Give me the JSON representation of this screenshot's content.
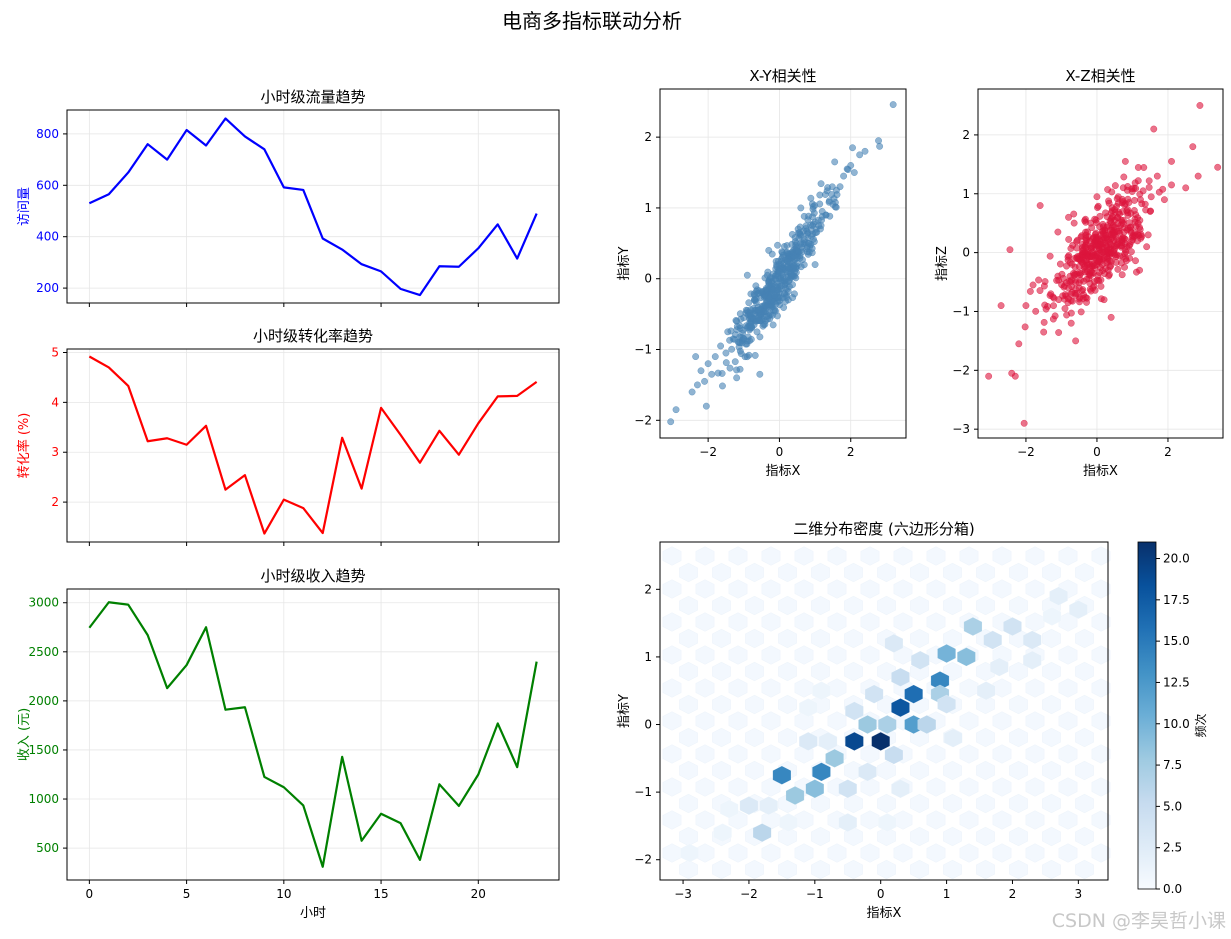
{
  "figure_title": "电商多指标联动分析",
  "watermark": "CSDN @李昊哲小课",
  "colors": {
    "traffic": "#0000ff",
    "conversion": "#ff0000",
    "revenue": "#008000",
    "xy": "#4682b4",
    "xz": "#dc143c"
  },
  "chart_data": [
    {
      "id": "traffic",
      "type": "line",
      "title": "小时级流量趋势",
      "xlabel": "",
      "ylabel": "访问量",
      "x": [
        0,
        1,
        2,
        3,
        4,
        5,
        6,
        7,
        8,
        9,
        10,
        11,
        12,
        13,
        14,
        15,
        16,
        17,
        18,
        19,
        20,
        21,
        22,
        23
      ],
      "series": [
        {
          "values": [
            530,
            565,
            650,
            760,
            700,
            815,
            755,
            860,
            790,
            740,
            592,
            582,
            393,
            350,
            293,
            265,
            197,
            173,
            285,
            283,
            355,
            448,
            315,
            490
          ]
        }
      ],
      "xlim": [
        -1.15,
        24.15
      ],
      "ylim": [
        142,
        893
      ],
      "xticks": [
        0,
        5,
        10,
        15,
        20
      ],
      "yticks": [
        200,
        400,
        600,
        800
      ],
      "grid": true
    },
    {
      "id": "conversion",
      "type": "line",
      "title": "小时级转化率趋势",
      "xlabel": "",
      "ylabel": "转化率 (%)",
      "x": [
        0,
        1,
        2,
        3,
        4,
        5,
        6,
        7,
        8,
        9,
        10,
        11,
        12,
        13,
        14,
        15,
        16,
        17,
        18,
        19,
        20,
        21,
        22,
        23
      ],
      "series": [
        {
          "values": [
            4.92,
            4.7,
            4.33,
            3.22,
            3.28,
            3.15,
            3.53,
            2.25,
            2.54,
            1.37,
            2.05,
            1.88,
            1.38,
            3.29,
            2.27,
            3.89,
            3.35,
            2.79,
            3.43,
            2.95,
            3.58,
            4.12,
            4.13,
            4.41
          ]
        }
      ],
      "xlim": [
        -1.15,
        24.15
      ],
      "ylim": [
        1.2,
        5.07
      ],
      "xticks": [
        0,
        5,
        10,
        15,
        20
      ],
      "yticks": [
        2,
        3,
        4,
        5
      ],
      "grid": true
    },
    {
      "id": "revenue",
      "type": "line",
      "title": "小时级收入趋势",
      "xlabel": "小时",
      "ylabel": "收入 (元)",
      "x": [
        0,
        1,
        2,
        3,
        4,
        5,
        6,
        7,
        8,
        9,
        10,
        11,
        12,
        13,
        14,
        15,
        16,
        17,
        18,
        19,
        20,
        21,
        22,
        23
      ],
      "series": [
        {
          "values": [
            2745,
            3005,
            2980,
            2670,
            2130,
            2365,
            2750,
            1910,
            1935,
            1225,
            1120,
            935,
            310,
            1430,
            575,
            850,
            755,
            380,
            1150,
            930,
            1250,
            1770,
            1325,
            2400
          ]
        }
      ],
      "xlim": [
        -1.15,
        24.15
      ],
      "ylim": [
        175,
        3140
      ],
      "xticks": [
        0,
        5,
        10,
        15,
        20
      ],
      "yticks": [
        500,
        1000,
        1500,
        2000,
        2500,
        3000
      ],
      "grid": true
    },
    {
      "id": "xy",
      "type": "scatter",
      "title": "X-Y相关性",
      "xlabel": "指标X",
      "ylabel": "指标Y",
      "xlim": [
        -3.35,
        3.55
      ],
      "ylim": [
        -2.25,
        2.68
      ],
      "xticks": [
        -2,
        0,
        2
      ],
      "yticks": [
        -2,
        -1,
        0,
        1,
        2
      ],
      "grid": true,
      "points": [
        [
          -3.05,
          -2.02
        ],
        [
          3.19,
          2.46
        ],
        [
          2.78,
          1.95
        ],
        [
          2.81,
          1.87
        ],
        [
          -2.9,
          -1.85
        ],
        [
          -2.45,
          -1.6
        ],
        [
          -2.3,
          -1.5
        ],
        [
          -2.2,
          -1.3
        ],
        [
          -2.1,
          -1.45
        ],
        [
          -2.0,
          -1.2
        ],
        [
          -1.9,
          -1.35
        ],
        [
          -2.05,
          -1.8
        ],
        [
          -1.8,
          -1.1
        ],
        [
          -1.65,
          -0.95
        ],
        [
          -1.5,
          -1.05
        ],
        [
          -1.45,
          -0.75
        ],
        [
          -1.3,
          -0.85
        ],
        [
          -1.2,
          -0.6
        ],
        [
          -1.1,
          -0.7
        ],
        [
          -1.0,
          -0.55
        ],
        [
          -0.9,
          -0.45
        ],
        [
          -0.8,
          -0.6
        ],
        [
          -0.7,
          -0.3
        ],
        [
          -0.6,
          -0.4
        ],
        [
          -0.5,
          -0.2
        ],
        [
          -0.4,
          -0.25
        ],
        [
          -0.3,
          -0.05
        ],
        [
          -0.2,
          -0.15
        ],
        [
          -0.1,
          0.05
        ],
        [
          0.0,
          0.0
        ],
        [
          0.1,
          0.15
        ],
        [
          0.2,
          0.1
        ],
        [
          0.3,
          0.3
        ],
        [
          0.4,
          0.25
        ],
        [
          0.5,
          0.45
        ],
        [
          0.6,
          0.4
        ],
        [
          0.7,
          0.55
        ],
        [
          0.8,
          0.65
        ],
        [
          0.9,
          0.6
        ],
        [
          1.0,
          0.8
        ],
        [
          1.1,
          0.75
        ],
        [
          1.2,
          0.95
        ],
        [
          1.3,
          0.9
        ],
        [
          1.4,
          1.1
        ],
        [
          1.5,
          1.05
        ],
        [
          1.6,
          1.25
        ],
        [
          1.7,
          1.3
        ],
        [
          1.8,
          1.45
        ],
        [
          1.9,
          1.55
        ],
        [
          2.0,
          1.6
        ],
        [
          2.1,
          1.5
        ],
        [
          2.25,
          1.75
        ],
        [
          2.4,
          1.8
        ],
        [
          1.55,
          1.65
        ],
        [
          2.05,
          1.85
        ],
        [
          -0.55,
          -1.35
        ],
        [
          -2.35,
          -1.1
        ],
        [
          -0.9,
          0.05
        ],
        [
          -1.2,
          -1.4
        ],
        [
          0.6,
          1.0
        ],
        [
          1.0,
          0.2
        ],
        [
          0.25,
          -0.3
        ],
        [
          -0.3,
          0.4
        ]
      ]
    },
    {
      "id": "xz",
      "type": "scatter",
      "title": "X-Z相关性",
      "xlabel": "指标X",
      "ylabel": "指标Z",
      "xlim": [
        -3.35,
        3.55
      ],
      "ylim": [
        -3.15,
        2.78
      ],
      "xticks": [
        -2,
        0,
        2
      ],
      "yticks": [
        -3,
        -2,
        -1,
        0,
        1,
        2
      ],
      "grid": true,
      "points": [
        [
          -3.05,
          -2.1
        ],
        [
          -2.4,
          -2.05
        ],
        [
          -2.3,
          -2.1
        ],
        [
          -2.05,
          -2.9
        ],
        [
          2.9,
          2.5
        ],
        [
          3.4,
          1.45
        ],
        [
          2.85,
          1.3
        ],
        [
          2.7,
          1.8
        ],
        [
          -2.45,
          0.05
        ],
        [
          -2.7,
          -0.9
        ],
        [
          1.6,
          2.1
        ],
        [
          2.1,
          1.55
        ],
        [
          2.5,
          1.1
        ],
        [
          -2.2,
          -1.55
        ],
        [
          -1.8,
          -0.55
        ],
        [
          -1.5,
          -1.35
        ],
        [
          -1.3,
          -0.7
        ],
        [
          -1.1,
          -0.4
        ],
        [
          -0.9,
          -0.95
        ],
        [
          -0.7,
          -0.2
        ],
        [
          -0.5,
          -0.6
        ],
        [
          -0.3,
          0.15
        ],
        [
          -0.1,
          -0.35
        ],
        [
          0.1,
          0.3
        ],
        [
          0.3,
          -0.1
        ],
        [
          0.5,
          0.55
        ],
        [
          0.7,
          0.2
        ],
        [
          0.9,
          0.85
        ],
        [
          1.1,
          0.45
        ],
        [
          1.3,
          1.05
        ],
        [
          1.5,
          0.7
        ],
        [
          1.7,
          1.3
        ],
        [
          1.9,
          0.9
        ],
        [
          2.1,
          1.15
        ],
        [
          -1.6,
          0.8
        ],
        [
          -1.1,
          0.35
        ],
        [
          0.4,
          -1.1
        ],
        [
          1.2,
          -0.3
        ],
        [
          -0.6,
          -1.5
        ],
        [
          0.8,
          1.55
        ],
        [
          -2.0,
          -0.9
        ],
        [
          0.0,
          0.95
        ],
        [
          0.2,
          -0.8
        ],
        [
          1.4,
          0.1
        ],
        [
          -0.8,
          0.6
        ]
      ]
    },
    {
      "id": "hex",
      "type": "heatmap",
      "title": "二维分布密度 (六边形分箱)",
      "xlabel": "指标X",
      "ylabel": "指标Y",
      "xlim": [
        -3.35,
        3.45
      ],
      "ylim": [
        -2.3,
        2.7
      ],
      "xticks": [
        -3,
        -2,
        -1,
        0,
        1,
        2,
        3
      ],
      "yticks": [
        -2,
        -1,
        0,
        1,
        2
      ],
      "colorbar": {
        "label": "频次",
        "min": 0,
        "max": 21,
        "ticks": [
          "0.0",
          "2.5",
          "5.0",
          "7.5",
          "10.0",
          "12.5",
          "15.0",
          "17.5",
          "20.0"
        ]
      },
      "bins": [
        [
          0,
          -0.25,
          21
        ],
        [
          -0.4,
          -0.25,
          19
        ],
        [
          0.3,
          0.25,
          18
        ],
        [
          0.5,
          0.45,
          16
        ],
        [
          0.9,
          0.65,
          14
        ],
        [
          0.5,
          0.0,
          12
        ],
        [
          -0.9,
          -0.7,
          14
        ],
        [
          -1.0,
          -0.95,
          9
        ],
        [
          -1.5,
          -0.75,
          14
        ],
        [
          -1.3,
          -1.05,
          8
        ],
        [
          -0.7,
          -0.5,
          8
        ],
        [
          -0.2,
          0.0,
          8
        ],
        [
          0.1,
          0.0,
          7
        ],
        [
          1.0,
          1.05,
          10
        ],
        [
          1.3,
          1.0,
          9
        ],
        [
          1.4,
          1.45,
          7
        ],
        [
          0.7,
          0.0,
          6
        ],
        [
          0.9,
          0.45,
          7
        ],
        [
          0.2,
          -0.45,
          5
        ],
        [
          -0.5,
          -0.95,
          4
        ],
        [
          -1.8,
          -1.6,
          6
        ],
        [
          -2.0,
          -1.2,
          3
        ],
        [
          0.3,
          0.7,
          5
        ],
        [
          1.7,
          1.25,
          4
        ],
        [
          2.0,
          1.45,
          4
        ],
        [
          2.3,
          1.25,
          3
        ],
        [
          1.0,
          0.3,
          4
        ],
        [
          -0.1,
          0.45,
          4
        ],
        [
          0.6,
          0.95,
          4
        ],
        [
          -0.4,
          0.2,
          4
        ],
        [
          -1.1,
          -0.25,
          3
        ],
        [
          -0.2,
          -0.7,
          3
        ],
        [
          0.3,
          -0.95,
          2
        ],
        [
          -0.5,
          -1.45,
          2
        ],
        [
          -1.7,
          -1.2,
          2
        ],
        [
          -2.4,
          -1.6,
          1
        ],
        [
          -2.9,
          -1.9,
          1
        ],
        [
          2.7,
          1.9,
          2
        ],
        [
          3.0,
          1.7,
          2
        ],
        [
          1.6,
          0.5,
          2
        ],
        [
          1.1,
          -0.2,
          2
        ],
        [
          0.2,
          1.2,
          3
        ],
        [
          -0.9,
          0.5,
          1
        ],
        [
          -1.1,
          0.25,
          1
        ],
        [
          1.8,
          0.85,
          2
        ],
        [
          2.3,
          0.95,
          2
        ],
        [
          2.6,
          1.6,
          1
        ],
        [
          -0.8,
          -0.25,
          2
        ],
        [
          0.1,
          -1.45,
          1
        ],
        [
          -1.4,
          -1.45,
          1
        ],
        [
          -2.3,
          -1.25,
          1
        ]
      ]
    }
  ]
}
